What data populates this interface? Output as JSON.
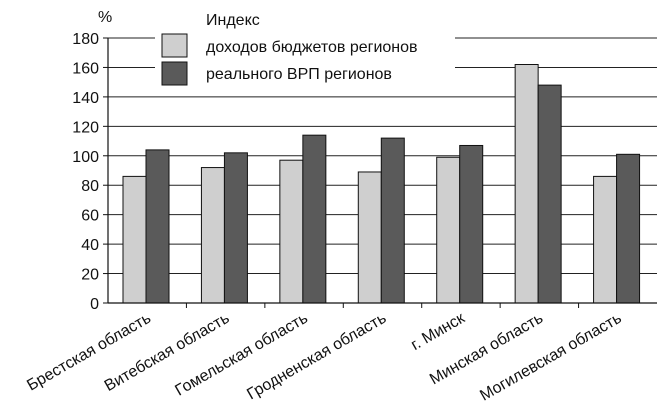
{
  "chart_data": {
    "type": "bar",
    "unit": "%",
    "legend_title": "Индекс",
    "categories": [
      "Брестская область",
      "Витебская область",
      "Гомельская область",
      "Гродненская область",
      "г. Минск",
      "Минская область",
      "Могилевская область"
    ],
    "series": [
      {
        "name": "доходов бюджетов регионов",
        "values": [
          86,
          92,
          97,
          89,
          99,
          162,
          86
        ],
        "color": "#cfcfcf"
      },
      {
        "name": "реального ВРП регионов",
        "values": [
          104,
          102,
          114,
          112,
          107,
          148,
          101
        ],
        "color": "#5a5a5a"
      }
    ],
    "ylim": [
      0,
      180
    ],
    "yticks": [
      0,
      20,
      40,
      60,
      80,
      100,
      120,
      140,
      160,
      180
    ],
    "grid": true,
    "legend_position": "top-left"
  }
}
